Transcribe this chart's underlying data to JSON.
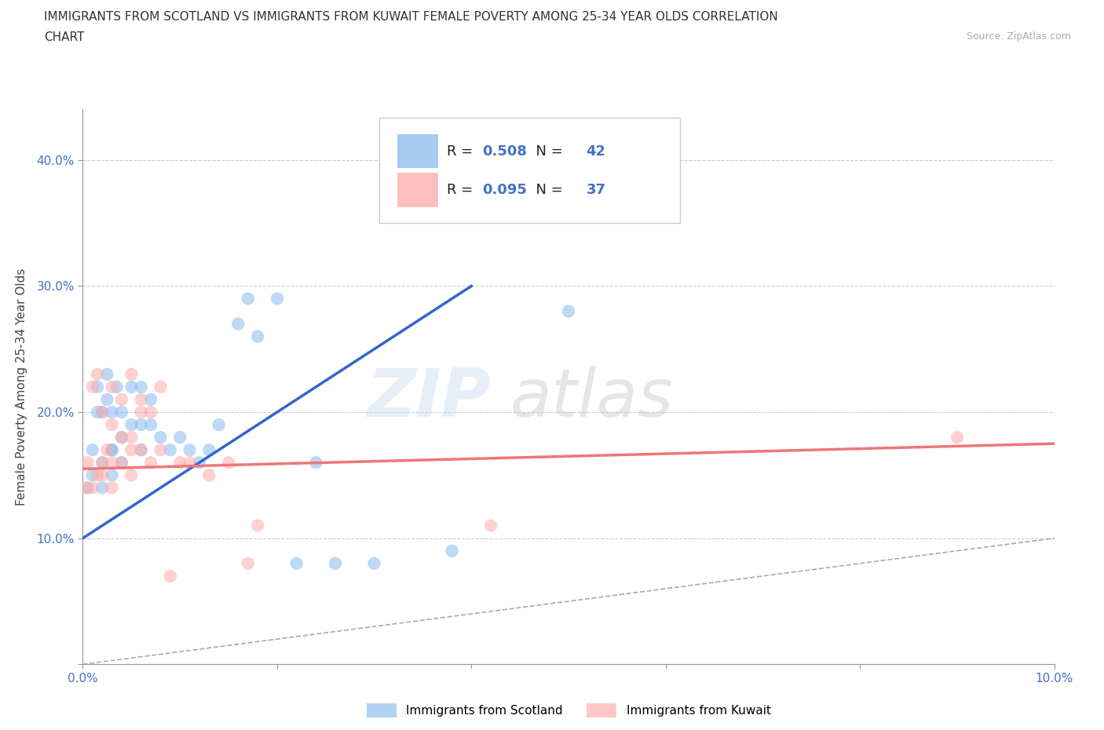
{
  "title_line1": "IMMIGRANTS FROM SCOTLAND VS IMMIGRANTS FROM KUWAIT FEMALE POVERTY AMONG 25-34 YEAR OLDS CORRELATION",
  "title_line2": "CHART",
  "source_text": "Source: ZipAtlas.com",
  "ylabel": "Female Poverty Among 25-34 Year Olds",
  "xlim": [
    0.0,
    0.1
  ],
  "ylim": [
    0.0,
    0.44
  ],
  "scotland_color": "#88bbee",
  "kuwait_color": "#ffaaaa",
  "scotland_R": 0.508,
  "scotland_N": 42,
  "kuwait_R": 0.095,
  "kuwait_N": 37,
  "scotland_line_color": "#3366cc",
  "kuwait_line_color": "#ee7777",
  "diagonal_color": "#aaaaaa",
  "legend_label_scotland": "Immigrants from Scotland",
  "legend_label_kuwait": "Immigrants from Kuwait",
  "scotland_x": [
    0.0005,
    0.001,
    0.001,
    0.0015,
    0.0015,
    0.002,
    0.002,
    0.002,
    0.0025,
    0.0025,
    0.003,
    0.003,
    0.003,
    0.003,
    0.0035,
    0.004,
    0.004,
    0.004,
    0.005,
    0.005,
    0.006,
    0.006,
    0.006,
    0.007,
    0.007,
    0.008,
    0.009,
    0.01,
    0.011,
    0.012,
    0.013,
    0.014,
    0.016,
    0.017,
    0.018,
    0.02,
    0.022,
    0.024,
    0.026,
    0.03,
    0.038,
    0.05
  ],
  "scotland_y": [
    0.14,
    0.15,
    0.17,
    0.2,
    0.22,
    0.14,
    0.16,
    0.2,
    0.21,
    0.23,
    0.15,
    0.17,
    0.17,
    0.2,
    0.22,
    0.16,
    0.18,
    0.2,
    0.19,
    0.22,
    0.17,
    0.19,
    0.22,
    0.19,
    0.21,
    0.18,
    0.17,
    0.18,
    0.17,
    0.16,
    0.17,
    0.19,
    0.27,
    0.29,
    0.26,
    0.29,
    0.08,
    0.16,
    0.08,
    0.08,
    0.09,
    0.28
  ],
  "kuwait_x": [
    0.0003,
    0.0005,
    0.001,
    0.001,
    0.0015,
    0.0015,
    0.002,
    0.002,
    0.002,
    0.0025,
    0.003,
    0.003,
    0.003,
    0.003,
    0.004,
    0.004,
    0.004,
    0.005,
    0.005,
    0.005,
    0.005,
    0.006,
    0.006,
    0.006,
    0.007,
    0.007,
    0.008,
    0.008,
    0.009,
    0.01,
    0.011,
    0.013,
    0.015,
    0.017,
    0.018,
    0.042,
    0.09
  ],
  "kuwait_y": [
    0.14,
    0.16,
    0.14,
    0.22,
    0.15,
    0.23,
    0.15,
    0.16,
    0.2,
    0.17,
    0.14,
    0.16,
    0.19,
    0.22,
    0.16,
    0.18,
    0.21,
    0.15,
    0.17,
    0.18,
    0.23,
    0.17,
    0.2,
    0.21,
    0.16,
    0.2,
    0.17,
    0.22,
    0.07,
    0.16,
    0.16,
    0.15,
    0.16,
    0.08,
    0.11,
    0.11,
    0.18
  ],
  "scotland_line_x0": 0.0,
  "scotland_line_y0": 0.1,
  "scotland_line_x1": 0.04,
  "scotland_line_y1": 0.3,
  "kuwait_line_x0": 0.0,
  "kuwait_line_y0": 0.155,
  "kuwait_line_x1": 0.1,
  "kuwait_line_y1": 0.175
}
